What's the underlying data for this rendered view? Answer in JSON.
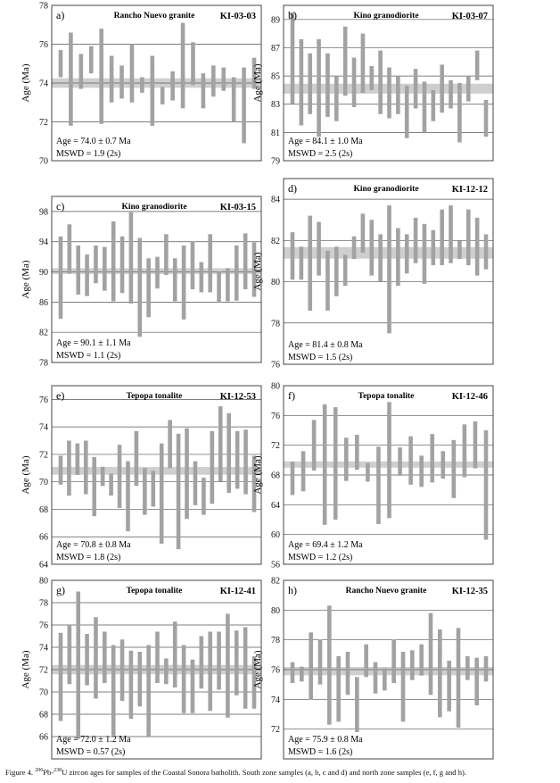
{
  "panels": [
    {
      "letter": "a)",
      "title": "Rancho Nuevo granite",
      "sample": "KI-03-03",
      "ylabel": "Age (Ma)",
      "ylim": [
        70,
        78
      ],
      "ticks": [
        70,
        72,
        74,
        76,
        78
      ],
      "mean": 74.0,
      "mean_error": 0.7,
      "age_text": "Age = 74.0 ± 0.7 Ma",
      "mswd_text": "MSWD = 1.9 (2s)",
      "bars": [
        [
          74.3,
          75.7
        ],
        [
          71.8,
          76.6
        ],
        [
          73.7,
          75.5
        ],
        [
          74.5,
          75.9
        ],
        [
          71.9,
          76.8
        ],
        [
          73.0,
          75.4
        ],
        [
          73.2,
          74.9
        ],
        [
          73.0,
          76.0
        ],
        [
          73.5,
          74.3
        ],
        [
          71.8,
          75.4
        ],
        [
          72.9,
          73.8
        ],
        [
          73.1,
          74.6
        ],
        [
          72.7,
          77.1
        ],
        [
          73.9,
          76.1
        ],
        [
          72.7,
          74.5
        ],
        [
          73.3,
          74.9
        ],
        [
          73.6,
          74.8
        ],
        [
          72.0,
          74.3
        ],
        [
          70.9,
          74.8
        ],
        [
          73.7,
          75.3
        ]
      ]
    },
    {
      "letter": "b)",
      "title": "Kino granodiorite",
      "sample": "KI-03-07",
      "ylabel": "Age (Ma)",
      "ylim": [
        79,
        90
      ],
      "ticks": [
        79,
        81,
        83,
        85,
        87,
        89
      ],
      "mean": 84.1,
      "mean_error": 1.0,
      "age_text": "Age = 84.1 ± 1.0 Ma",
      "mswd_text": "MSWD = 2.5 (2s)",
      "bars": [
        [
          83.0,
          89.5
        ],
        [
          81.5,
          87.6
        ],
        [
          82.3,
          86.6
        ],
        [
          80.7,
          87.6
        ],
        [
          82.1,
          86.6
        ],
        [
          81.8,
          85.0
        ],
        [
          83.6,
          88.5
        ],
        [
          82.8,
          86.3
        ],
        [
          83.8,
          88.0
        ],
        [
          84.0,
          85.7
        ],
        [
          82.3,
          86.8
        ],
        [
          82.0,
          85.6
        ],
        [
          82.3,
          85.0
        ],
        [
          80.6,
          84.3
        ],
        [
          82.7,
          85.5
        ],
        [
          81.0,
          84.6
        ],
        [
          81.8,
          84.0
        ],
        [
          82.4,
          85.8
        ],
        [
          82.7,
          84.7
        ],
        [
          80.3,
          84.5
        ],
        [
          83.2,
          85.0
        ],
        [
          84.7,
          86.8
        ],
        [
          80.7,
          83.3
        ]
      ]
    },
    {
      "letter": "c)",
      "title": "Kino granodiorite",
      "sample": "KI-03-15",
      "ylabel": "Age (Ma)",
      "ylim": [
        78,
        100
      ],
      "ticks": [
        78,
        82,
        86,
        90,
        94,
        98
      ],
      "mean": 90.1,
      "mean_error": 1.1,
      "age_text": "Age = 90.1 ± 1.1 Ma",
      "mswd_text": "MSWD = 1.1 (2s)",
      "bars": [
        [
          83.8,
          94.7
        ],
        [
          89.8,
          96.3
        ],
        [
          87.0,
          93.5
        ],
        [
          86.8,
          92.3
        ],
        [
          88.5,
          93.5
        ],
        [
          87.5,
          93.3
        ],
        [
          86.1,
          96.7
        ],
        [
          87.2,
          94.7
        ],
        [
          85.8,
          97.9
        ],
        [
          81.4,
          94.5
        ],
        [
          84.0,
          91.8
        ],
        [
          87.8,
          92.0
        ],
        [
          89.6,
          95.0
        ],
        [
          86.1,
          91.8
        ],
        [
          83.7,
          93.5
        ],
        [
          87.7,
          94.0
        ],
        [
          87.3,
          91.3
        ],
        [
          87.3,
          95.0
        ],
        [
          86.0,
          90.0
        ],
        [
          86.1,
          90.5
        ],
        [
          86.2,
          93.5
        ],
        [
          87.7,
          95.1
        ],
        [
          86.7,
          93.9
        ]
      ]
    },
    {
      "letter": "d)",
      "title": "Kino granodiorite",
      "sample": "KI-12-12",
      "ylabel": "Age (Ma)",
      "ylim": [
        76,
        85
      ],
      "ticks": [
        76,
        78,
        80,
        82,
        84
      ],
      "mean": 81.4,
      "mean_error": 0.8,
      "age_text": "Age = 81.4 ± 0.8 Ma",
      "mswd_text": "MSWD = 1.5 (2s)",
      "bars": [
        [
          80.1,
          82.4
        ],
        [
          80.1,
          81.7
        ],
        [
          78.6,
          83.2
        ],
        [
          80.3,
          82.9
        ],
        [
          78.6,
          81.5
        ],
        [
          79.3,
          81.7
        ],
        [
          79.8,
          81.3
        ],
        [
          81.1,
          82.2
        ],
        [
          81.4,
          83.3
        ],
        [
          80.3,
          83.0
        ],
        [
          80.0,
          82.3
        ],
        [
          77.5,
          83.7
        ],
        [
          79.8,
          82.6
        ],
        [
          80.4,
          82.3
        ],
        [
          80.9,
          83.1
        ],
        [
          79.9,
          82.8
        ],
        [
          80.8,
          82.5
        ],
        [
          80.8,
          83.5
        ],
        [
          80.9,
          83.7
        ],
        [
          81.1,
          82.0
        ],
        [
          80.8,
          83.5
        ],
        [
          80.3,
          83.1
        ],
        [
          80.6,
          82.3
        ]
      ]
    },
    {
      "letter": "e)",
      "title": "Tepopa tonalite",
      "sample": "KI-12-53",
      "ylabel": "Age (Ma)",
      "ylim": [
        64,
        77
      ],
      "ticks": [
        64,
        66,
        68,
        70,
        72,
        74,
        76
      ],
      "mean": 70.8,
      "mean_error": 0.8,
      "age_text": "Age = 70.8 ± 0.8 Ma",
      "mswd_text": "MSWD = 1.8 (2s)",
      "bars": [
        [
          69.8,
          71.9
        ],
        [
          69.0,
          73.0
        ],
        [
          70.5,
          72.8
        ],
        [
          69.1,
          73.0
        ],
        [
          67.5,
          71.8
        ],
        [
          69.7,
          71.1
        ],
        [
          69.0,
          70.6
        ],
        [
          68.1,
          72.7
        ],
        [
          66.4,
          71.5
        ],
        [
          69.7,
          73.7
        ],
        [
          67.6,
          71.0
        ],
        [
          68.2,
          70.8
        ],
        [
          65.5,
          72.8
        ],
        [
          71.0,
          74.5
        ],
        [
          65.1,
          73.5
        ],
        [
          67.3,
          73.9
        ],
        [
          68.3,
          71.5
        ],
        [
          67.6,
          70.3
        ],
        [
          68.4,
          73.7
        ],
        [
          70.0,
          75.5
        ],
        [
          69.2,
          75.0
        ],
        [
          69.5,
          73.7
        ],
        [
          69.1,
          73.8
        ],
        [
          67.8,
          71.9
        ]
      ]
    },
    {
      "letter": "f)",
      "title": "Tepopa tonalite",
      "sample": "KI-12-46",
      "ylabel": "Age (Ma)",
      "ylim": [
        56,
        80
      ],
      "ticks": [
        56,
        60,
        64,
        68,
        72,
        76,
        80
      ],
      "mean": 69.4,
      "mean_error": 1.2,
      "age_text": "Age = 69.4 ± 1.2 Ma",
      "mswd_text": "MSWD = 1.2 (2s)",
      "bars": [
        [
          65.3,
          69.8
        ],
        [
          65.8,
          71.2
        ],
        [
          68.6,
          75.4
        ],
        [
          61.3,
          77.5
        ],
        [
          62.0,
          77.1
        ],
        [
          67.2,
          73.0
        ],
        [
          68.7,
          73.4
        ],
        [
          67.1,
          69.6
        ],
        [
          61.4,
          71.8
        ],
        [
          62.2,
          77.8
        ],
        [
          67.9,
          71.7
        ],
        [
          66.7,
          73.2
        ],
        [
          66.4,
          70.6
        ],
        [
          67.0,
          73.5
        ],
        [
          67.5,
          71.2
        ],
        [
          64.9,
          72.7
        ],
        [
          67.7,
          74.8
        ],
        [
          68.9,
          75.2
        ],
        [
          59.3,
          74.0
        ]
      ]
    },
    {
      "letter": "g)",
      "title": "Tepopa tonalite",
      "sample": "KI-12-41",
      "ylabel": "Age (Ma)",
      "ylim": [
        64,
        80
      ],
      "ticks": [
        66,
        68,
        70,
        72,
        74,
        76,
        78,
        80
      ],
      "mean": 72.0,
      "mean_error": 1.2,
      "age_text": "Age = 72.0 ± 1.2 Ma",
      "mswd_text": "MSWD = 0.57 (2s)",
      "bars": [
        [
          67.4,
          75.3
        ],
        [
          70.7,
          76.0
        ],
        [
          65.8,
          79.0
        ],
        [
          70.6,
          75.2
        ],
        [
          69.4,
          76.7
        ],
        [
          70.8,
          75.4
        ],
        [
          66.1,
          74.2
        ],
        [
          69.2,
          74.7
        ],
        [
          67.6,
          73.7
        ],
        [
          68.7,
          73.6
        ],
        [
          66.0,
          74.2
        ],
        [
          70.8,
          75.4
        ],
        [
          70.7,
          73.0
        ],
        [
          70.4,
          76.3
        ],
        [
          68.1,
          74.2
        ],
        [
          68.1,
          72.9
        ],
        [
          70.3,
          75.0
        ],
        [
          68.3,
          75.4
        ],
        [
          70.2,
          75.4
        ],
        [
          67.7,
          77.0
        ],
        [
          69.7,
          75.5
        ],
        [
          68.5,
          75.8
        ],
        [
          68.5,
          73.2
        ]
      ]
    },
    {
      "letter": "h)",
      "title": "Rancho Nuevo granite",
      "sample": "KI-12-35",
      "ylabel": "Age (Ma)",
      "ylim": [
        70,
        82
      ],
      "ticks": [
        72,
        74,
        76,
        78,
        80,
        82
      ],
      "mean": 75.9,
      "mean_error": 0.8,
      "age_text": "Age = 75.9 ± 0.8 Ma",
      "mswd_text": "MSWD = 1.6 (2s)",
      "bars": [
        [
          75.1,
          76.5
        ],
        [
          75.2,
          76.2
        ],
        [
          74.0,
          78.5
        ],
        [
          75.0,
          78.0
        ],
        [
          72.3,
          80.3
        ],
        [
          72.5,
          76.9
        ],
        [
          74.3,
          77.2
        ],
        [
          71.8,
          75.5
        ],
        [
          75.5,
          77.7
        ],
        [
          74.4,
          76.5
        ],
        [
          74.6,
          76.1
        ],
        [
          75.1,
          78.0
        ],
        [
          72.5,
          77.2
        ],
        [
          75.3,
          77.3
        ],
        [
          75.6,
          77.7
        ],
        [
          74.3,
          79.8
        ],
        [
          72.8,
          78.7
        ],
        [
          73.2,
          76.6
        ],
        [
          72.1,
          78.8
        ],
        [
          75.3,
          76.9
        ],
        [
          73.6,
          76.8
        ],
        [
          75.2,
          76.9
        ]
      ]
    }
  ],
  "caption": {
    "prefix": "Figure 4. ",
    "sup1": "206",
    "mid": "Pb-",
    "sup2": "238",
    "suffix": "U zircon ages for samples of the Coastal Sonora batholith. South zone samples (a, b, c and d) and north zone samples (e, f, g and h)."
  },
  "colors": {
    "bar": "#a2a2a2",
    "mean_band": "#cfcfcf",
    "grid": "#555555",
    "frame": "#444444"
  },
  "chart_data": [
    {
      "type": "bar",
      "title": "Rancho Nuevo granite KI-03-03",
      "ylabel": "Age (Ma)",
      "ylim": [
        70,
        78
      ],
      "mean": 74.0,
      "x": [
        1,
        2,
        3,
        4,
        5,
        6,
        7,
        8,
        9,
        10,
        11,
        12,
        13,
        14,
        15,
        16,
        17,
        18,
        19,
        20
      ]
    },
    {
      "type": "bar",
      "title": "Kino granodiorite KI-03-07",
      "ylabel": "Age (Ma)",
      "ylim": [
        79,
        90
      ],
      "mean": 84.1
    },
    {
      "type": "bar",
      "title": "Kino granodiorite KI-03-15",
      "ylabel": "Age (Ma)",
      "ylim": [
        78,
        100
      ],
      "mean": 90.1
    },
    {
      "type": "bar",
      "title": "Kino granodiorite KI-12-12",
      "ylabel": "Age (Ma)",
      "ylim": [
        76,
        85
      ],
      "mean": 81.4
    },
    {
      "type": "bar",
      "title": "Tepopa tonalite KI-12-53",
      "ylabel": "Age (Ma)",
      "ylim": [
        64,
        77
      ],
      "mean": 70.8
    },
    {
      "type": "bar",
      "title": "Tepopa tonalite KI-12-46",
      "ylabel": "Age (Ma)",
      "ylim": [
        56,
        80
      ],
      "mean": 69.4
    },
    {
      "type": "bar",
      "title": "Tepopa tonalite KI-12-41",
      "ylabel": "Age (Ma)",
      "ylim": [
        64,
        80
      ],
      "mean": 72.0
    },
    {
      "type": "bar",
      "title": "Rancho Nuevo granite KI-12-35",
      "ylabel": "Age (Ma)",
      "ylim": [
        70,
        82
      ],
      "mean": 75.9
    }
  ]
}
